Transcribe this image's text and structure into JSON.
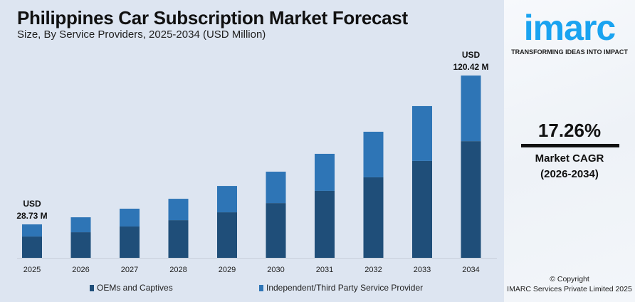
{
  "title": "Philippines Car Subscription Market Forecast",
  "subtitle": "Size, By Service Providers, 2025-2034 (USD Million)",
  "brand": {
    "logo_text": "imarc",
    "tagline": "TRANSFORMING IDEAS INTO IMPACT",
    "color": "#1aa3f0"
  },
  "cagr": {
    "value": "17.26%",
    "label": "Market CAGR",
    "period": "(2026-2034)"
  },
  "copyright": {
    "line1": "© Copyright",
    "line2": "IMARC Services Private Limited 2025"
  },
  "chart_data": {
    "type": "bar",
    "stacked": true,
    "categories": [
      "2025",
      "2026",
      "2027",
      "2028",
      "2029",
      "2030",
      "2031",
      "2032",
      "2033",
      "2034"
    ],
    "series": [
      {
        "name": "OEMs and Captives",
        "color": "#1f4e79",
        "values": [
          18.3,
          20.9,
          24.5,
          28.4,
          33.2,
          38.9,
          46.5,
          54.8,
          64.9,
          77.1
        ]
      },
      {
        "name": "Independent/Third Party Service Provider",
        "color": "#2e75b6",
        "values": [
          10.43,
          12.2,
          13.9,
          16.1,
          19.2,
          22.3,
          25.7,
          31.0,
          36.7,
          43.32
        ]
      }
    ],
    "annotations": [
      {
        "category": "2025",
        "line1": "USD",
        "line2": "28.73 M"
      },
      {
        "category": "2034",
        "line1": "USD",
        "line2": "120.42 M"
      }
    ],
    "grid": false,
    "legend": "bottom"
  }
}
